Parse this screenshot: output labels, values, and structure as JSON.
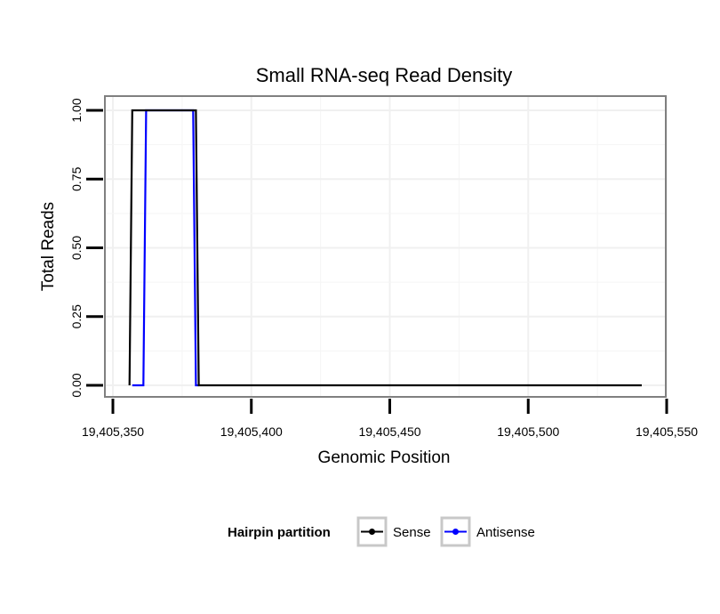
{
  "chart_data": {
    "type": "line",
    "title": "Small RNA-seq Read Density",
    "xlabel": "Genomic Position",
    "ylabel": "Total Reads",
    "xlim": [
      19405350,
      19405550
    ],
    "ylim": [
      0,
      1
    ],
    "x_ticks": [
      19405350,
      19405400,
      19405450,
      19405500,
      19405550
    ],
    "x_tick_labels": [
      "19,405,350",
      "19,405,400",
      "19,405,450",
      "19,405,500",
      "19,405,550"
    ],
    "y_ticks": [
      0,
      0.25,
      0.5,
      0.75,
      1
    ],
    "y_tick_labels": [
      "0.00",
      "0.25",
      "0.50",
      "0.75",
      "1.00"
    ],
    "grid": true,
    "legend_position": "bottom",
    "legend_title": "Hairpin partition",
    "series": [
      {
        "name": "Sense",
        "color": "#000000",
        "x": [
          19405356,
          19405357,
          19405380,
          19405381,
          19405541
        ],
        "y": [
          0,
          1,
          1,
          0,
          0
        ]
      },
      {
        "name": "Antisense",
        "color": "#0000ff",
        "x": [
          19405357,
          19405361,
          19405362,
          19405379,
          19405380,
          19405381
        ],
        "y": [
          0,
          0,
          1,
          1,
          0,
          0
        ]
      }
    ]
  }
}
